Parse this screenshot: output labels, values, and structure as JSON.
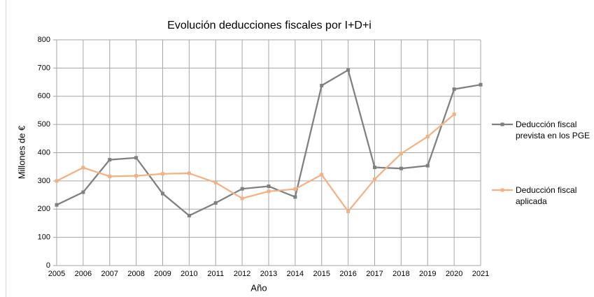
{
  "chart_data": {
    "type": "line",
    "title": "Evolución deducciones fiscales por I+D+i",
    "x_label": "Año",
    "y_label": "Millones de €",
    "categories": [
      "2005",
      "2006",
      "2007",
      "2008",
      "2009",
      "2010",
      "2011",
      "2012",
      "2013",
      "2014",
      "2015",
      "2016",
      "2017",
      "2018",
      "2019",
      "2020",
      "2021"
    ],
    "series": [
      {
        "name": "Deducción fiscal prevista en los PGE",
        "color": "#7f7f7f",
        "values": [
          215,
          260,
          375,
          382,
          255,
          177,
          222,
          272,
          281,
          243,
          638,
          693,
          348,
          344,
          354,
          625,
          641
        ]
      },
      {
        "name": "Deducción fiscal aplicada",
        "color": "#f4b183",
        "values": [
          300,
          347,
          316,
          318,
          325,
          327,
          294,
          238,
          263,
          271,
          322,
          192,
          306,
          397,
          457,
          536,
          null
        ]
      }
    ],
    "ylim": [
      0,
      800
    ],
    "yticks": [
      0,
      100,
      200,
      300,
      400,
      500,
      600,
      700,
      800
    ],
    "grid": true,
    "legend": "right"
  }
}
